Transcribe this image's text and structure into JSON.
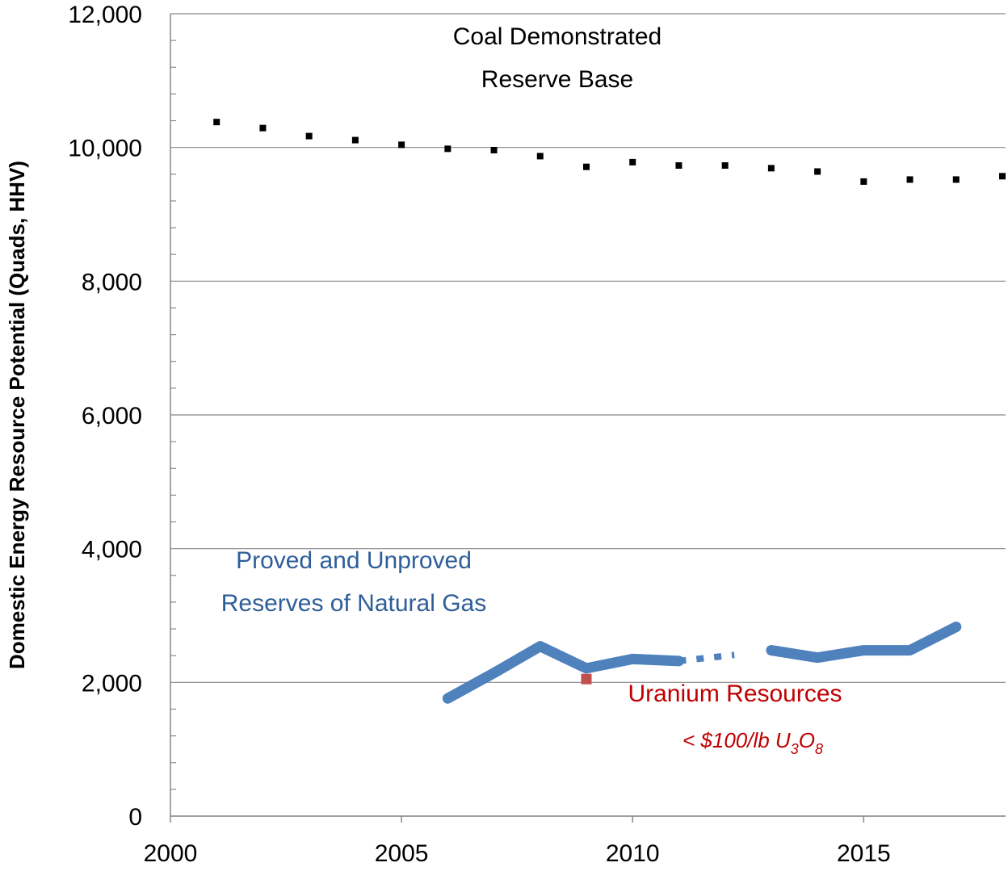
{
  "chart_data": {
    "type": "line",
    "ylabel": "Domestic Energy Resource Potential (Quads, HHV)",
    "xlim": [
      2000,
      2018
    ],
    "xticks": [
      2000,
      2005,
      2010,
      2015
    ],
    "ylim": [
      0,
      12000
    ],
    "yticks": [
      0,
      {
        "value": 2000,
        "label": "2,000"
      },
      {
        "value": 4000,
        "label": "4,000"
      },
      {
        "value": 6000,
        "label": "6,000"
      },
      {
        "value": 8000,
        "label": "8,000"
      },
      {
        "value": 10000,
        "label": "10,000"
      },
      {
        "value": 12000,
        "label": "12,000"
      }
    ],
    "yminorticks": [
      400,
      800,
      1200,
      1600,
      2400,
      2800,
      3200,
      3600,
      4400,
      4800,
      5200,
      5600,
      6400,
      6800,
      7200,
      7600,
      8400,
      8800,
      9200,
      9600,
      10400,
      10800,
      11200,
      11600
    ],
    "grid": true,
    "series": [
      {
        "style": "markers",
        "color": "#000000",
        "x": [
          2001,
          2002,
          2003,
          2004,
          2005,
          2006,
          2007,
          2008,
          2009,
          2010,
          2011,
          2012,
          2013,
          2014,
          2015,
          2016,
          2017,
          2018
        ],
        "values": [
          10380,
          10290,
          10170,
          10110,
          10040,
          9980,
          9960,
          9870,
          9710,
          9780,
          9730,
          9730,
          9690,
          9640,
          9490,
          9520,
          9520,
          9570
        ]
      },
      {
        "style": "solid",
        "color": "#4f81bd",
        "x": [
          2006,
          2007,
          2008,
          2009,
          2010,
          2011,
          2012,
          2013,
          2014,
          2015,
          2016,
          2017
        ],
        "values": [
          1760,
          2140,
          2540,
          2210,
          2350,
          2320,
          null,
          2480,
          2370,
          2480,
          2480,
          2830
        ]
      },
      {
        "style": "dotted",
        "color": "#4f81bd",
        "x": [
          2011,
          2012.2
        ],
        "values": [
          2320,
          2410
        ]
      },
      {
        "style": "markers",
        "color": "#c0504d",
        "x": [
          2009
        ],
        "values": [
          2050
        ]
      }
    ],
    "annotations": {
      "coal": [
        "Coal Demonstrated",
        "Reserve Base"
      ],
      "gas": [
        "Proved and Unproved",
        "Reserves of Natural Gas"
      ],
      "uranium": "Uranium Resources",
      "uranium_note": [
        "< $100/lb U",
        "3",
        "O",
        "8"
      ]
    }
  }
}
